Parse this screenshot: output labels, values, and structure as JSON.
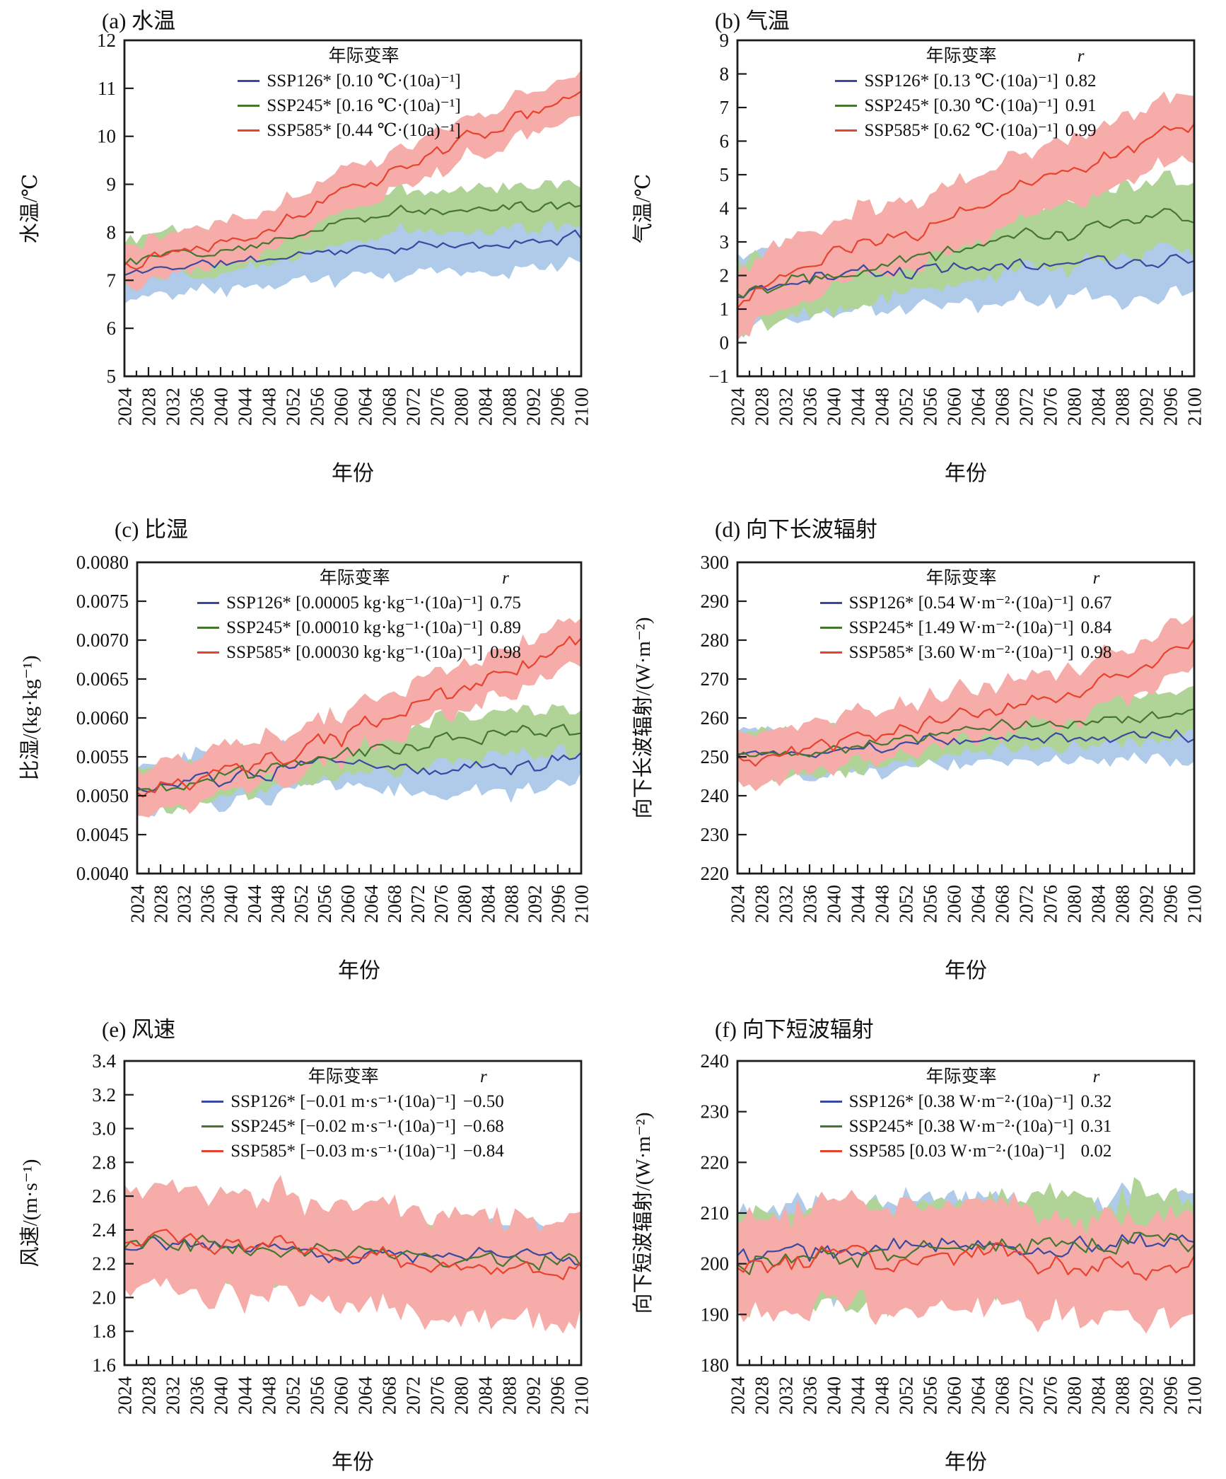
{
  "figure": {
    "background": "#ffffff",
    "x_axis": {
      "label": "年份",
      "start": 2024,
      "end": 2100,
      "label_step": 4,
      "minor_step": 2,
      "tick_labels": [
        "2024",
        "2028",
        "2032",
        "2036",
        "2040",
        "2044",
        "2048",
        "2052",
        "2056",
        "2060",
        "2064",
        "2068",
        "2072",
        "2076",
        "2080",
        "2084",
        "2088",
        "2092",
        "2096",
        "2100"
      ]
    },
    "colors": {
      "SSP126": {
        "line": "#3A49A0",
        "band": "#AFCBE9"
      },
      "SSP245": {
        "line": "#45762F",
        "band": "#B0D497"
      },
      "SSP585": {
        "line": "#E8422F",
        "band": "#F6ADA9"
      }
    },
    "axis_color": "#1c1c1c"
  },
  "chart_data": [
    {
      "id": "a",
      "type": "line-band",
      "title": "(a) 水温",
      "ylabel": "水温/℃",
      "xlabel": "年份",
      "ylim": [
        5,
        12
      ],
      "ytick": 1,
      "ydec": 0,
      "grid": false,
      "legend_position": "top-center",
      "legend": {
        "header": "年际变率",
        "r_header": "",
        "entries": [
          {
            "name": "SSP126*",
            "rate": "[0.10 ℃·(10a)⁻¹]",
            "r": "",
            "color": "#3A49A0"
          },
          {
            "name": "SSP245*",
            "rate": "[0.16 ℃·(10a)⁻¹]",
            "r": "",
            "color": "#45762F"
          },
          {
            "name": "SSP585*",
            "rate": "[0.44 ℃·(10a)⁻¹]",
            "r": "",
            "color": "#E8422F"
          }
        ]
      },
      "anchor_years": [
        2024,
        2032,
        2040,
        2048,
        2056,
        2064,
        2072,
        2080,
        2088,
        2096,
        2100
      ],
      "series": [
        {
          "scenario": "SSP126",
          "trend_per_decade": 0.1,
          "values": [
            7.1,
            7.3,
            7.35,
            7.45,
            7.6,
            7.65,
            7.7,
            7.7,
            7.75,
            7.85,
            7.9
          ],
          "noise": 0.13,
          "band": 0.55,
          "seed": 11
        },
        {
          "scenario": "SSP245",
          "trend_per_decade": 0.16,
          "values": [
            7.4,
            7.55,
            7.65,
            7.85,
            8.1,
            8.3,
            8.45,
            8.5,
            8.55,
            8.6,
            8.65
          ],
          "noise": 0.14,
          "band": 0.45,
          "seed": 12
        },
        {
          "scenario": "SSP585",
          "trend_per_decade": 0.44,
          "values": [
            7.4,
            7.6,
            7.85,
            8.1,
            8.55,
            9.0,
            9.45,
            9.9,
            10.3,
            10.65,
            10.9
          ],
          "noise": 0.16,
          "band": 0.42,
          "seed": 13
        }
      ]
    },
    {
      "id": "b",
      "type": "line-band",
      "title": "(b) 气温",
      "ylabel": "气温/℃",
      "xlabel": "年份",
      "ylim": [
        -1,
        9
      ],
      "ytick": 1,
      "ydec": 0,
      "grid": false,
      "legend_position": "top-center",
      "legend": {
        "header": "年际变率",
        "r_header": "r",
        "entries": [
          {
            "name": "SSP126*",
            "rate": "[0.13 ℃·(10a)⁻¹]",
            "r": "0.82",
            "color": "#3A49A0"
          },
          {
            "name": "SSP245*",
            "rate": "[0.30 ℃·(10a)⁻¹]",
            "r": "0.91",
            "color": "#45762F"
          },
          {
            "name": "SSP585*",
            "rate": "[0.62 ℃·(10a)⁻¹]",
            "r": "0.99",
            "color": "#E8422F"
          }
        ]
      },
      "anchor_years": [
        2024,
        2032,
        2040,
        2048,
        2056,
        2064,
        2072,
        2080,
        2088,
        2096,
        2100
      ],
      "series": [
        {
          "scenario": "SSP126",
          "trend_per_decade": 0.13,
          "values": [
            1.4,
            1.8,
            2.0,
            2.1,
            2.25,
            2.3,
            2.3,
            2.35,
            2.4,
            2.45,
            2.5
          ],
          "noise": 0.28,
          "band": 1.1,
          "seed": 21
        },
        {
          "scenario": "SSP245",
          "trend_per_decade": 0.3,
          "values": [
            1.5,
            1.9,
            2.2,
            2.4,
            2.65,
            3.0,
            3.2,
            3.3,
            3.5,
            3.8,
            3.6
          ],
          "noise": 0.32,
          "band": 1.0,
          "seed": 22
        },
        {
          "scenario": "SSP585",
          "trend_per_decade": 0.62,
          "values": [
            1.3,
            2.0,
            2.5,
            3.0,
            3.5,
            4.1,
            4.6,
            5.2,
            5.8,
            6.4,
            6.6
          ],
          "noise": 0.32,
          "band": 1.0,
          "seed": 23
        }
      ]
    },
    {
      "id": "c",
      "type": "line-band",
      "title": "(c) 比湿",
      "ylabel": "比湿/(kg·kg⁻¹)",
      "xlabel": "年份",
      "ylim": [
        0.004,
        0.008
      ],
      "ytick": 0.0005,
      "ydec": 4,
      "grid": false,
      "legend_position": "top-center",
      "legend": {
        "header": "年际变率",
        "r_header": "r",
        "entries": [
          {
            "name": "SSP126*",
            "rate": "[0.00005 kg·kg⁻¹·(10a)⁻¹]",
            "r": "0.75",
            "color": "#3A49A0"
          },
          {
            "name": "SSP245*",
            "rate": "[0.00010 kg·kg⁻¹·(10a)⁻¹]",
            "r": "0.89",
            "color": "#45762F"
          },
          {
            "name": "SSP585*",
            "rate": "[0.00030 kg·kg⁻¹·(10a)⁻¹]",
            "r": "0.98",
            "color": "#E8422F"
          }
        ]
      },
      "anchor_years": [
        2024,
        2032,
        2040,
        2048,
        2056,
        2064,
        2072,
        2080,
        2088,
        2096,
        2100
      ],
      "series": [
        {
          "scenario": "SSP126",
          "trend_per_decade": 5e-05,
          "values": [
            0.00505,
            0.00515,
            0.0052,
            0.0053,
            0.0054,
            0.0054,
            0.00535,
            0.00535,
            0.0054,
            0.00545,
            0.0055
          ],
          "noise": 0.00012,
          "band": 0.0003,
          "seed": 31
        },
        {
          "scenario": "SSP245",
          "trend_per_decade": 0.0001,
          "values": [
            0.00505,
            0.00515,
            0.00525,
            0.00535,
            0.0055,
            0.0056,
            0.0057,
            0.00575,
            0.0058,
            0.00585,
            0.0059
          ],
          "noise": 0.00012,
          "band": 0.00028,
          "seed": 32
        },
        {
          "scenario": "SSP585",
          "trend_per_decade": 0.0003,
          "values": [
            0.005,
            0.00515,
            0.0053,
            0.00545,
            0.00565,
            0.0059,
            0.00615,
            0.0064,
            0.0066,
            0.0069,
            0.00705
          ],
          "noise": 0.00014,
          "band": 0.0003,
          "seed": 33
        }
      ]
    },
    {
      "id": "d",
      "type": "line-band",
      "title": "(d) 向下长波辐射",
      "ylabel": "向下长波辐射/(W·m⁻²)",
      "xlabel": "年份",
      "ylim": [
        220,
        300
      ],
      "ytick": 10,
      "ydec": 0,
      "grid": false,
      "legend_position": "top-center",
      "legend": {
        "header": "年际变率",
        "r_header": "r",
        "entries": [
          {
            "name": "SSP126*",
            "rate": "[0.54 W·m⁻²·(10a)⁻¹]",
            "r": "0.67",
            "color": "#3A49A0"
          },
          {
            "name": "SSP245*",
            "rate": "[1.49 W·m⁻²·(10a)⁻¹]",
            "r": "0.84",
            "color": "#45762F"
          },
          {
            "name": "SSP585*",
            "rate": "[3.60 W·m⁻²·(10a)⁻¹]",
            "r": "0.98",
            "color": "#E8422F"
          }
        ]
      },
      "anchor_years": [
        2024,
        2032,
        2040,
        2048,
        2056,
        2064,
        2072,
        2080,
        2088,
        2096,
        2100
      ],
      "series": [
        {
          "scenario": "SSP126",
          "trend_per_decade": 0.54,
          "values": [
            250,
            251,
            252,
            253,
            254,
            254,
            255,
            254.5,
            255,
            255,
            256
          ],
          "noise": 1.9,
          "band": 6,
          "seed": 41
        },
        {
          "scenario": "SSP245",
          "trend_per_decade": 1.49,
          "values": [
            250,
            251,
            252.5,
            254,
            255.5,
            257,
            258,
            258.5,
            260,
            261,
            262
          ],
          "noise": 1.9,
          "band": 6,
          "seed": 42
        },
        {
          "scenario": "SSP585",
          "trend_per_decade": 3.6,
          "values": [
            249.5,
            251,
            253,
            255.5,
            258,
            261,
            264,
            267,
            271,
            275,
            279
          ],
          "noise": 2.3,
          "band": 6.5,
          "seed": 43
        }
      ]
    },
    {
      "id": "e",
      "type": "line-band",
      "title": "(e) 风速",
      "ylabel": "风速/(m·s⁻¹)",
      "xlabel": "年份",
      "ylim": [
        1.6,
        3.4
      ],
      "ytick": 0.2,
      "ydec": 1,
      "grid": false,
      "legend_position": "top-center",
      "legend": {
        "header": "年际变率",
        "r_header": "r",
        "entries": [
          {
            "name": "SSP126*",
            "rate": "[−0.01 m·s⁻¹·(10a)⁻¹]",
            "r": "−0.50",
            "color": "#3A49A0"
          },
          {
            "name": "SSP245*",
            "rate": "[−0.02 m·s⁻¹·(10a)⁻¹]",
            "r": "−0.68",
            "color": "#45762F"
          },
          {
            "name": "SSP585*",
            "rate": "[−0.03 m·s⁻¹·(10a)⁻¹]",
            "r": "−0.84",
            "color": "#E8422F"
          }
        ]
      },
      "anchor_years": [
        2024,
        2032,
        2040,
        2048,
        2056,
        2064,
        2072,
        2080,
        2088,
        2096,
        2100
      ],
      "series": [
        {
          "scenario": "SSP126",
          "trend_per_decade": -0.01,
          "values": [
            2.33,
            2.32,
            2.3,
            2.29,
            2.27,
            2.26,
            2.25,
            2.25,
            2.26,
            2.23,
            2.22
          ],
          "noise": 0.055,
          "band": 0.17,
          "seed": 51
        },
        {
          "scenario": "SSP245",
          "trend_per_decade": -0.02,
          "values": [
            2.34,
            2.32,
            2.31,
            2.3,
            2.28,
            2.26,
            2.25,
            2.24,
            2.23,
            2.22,
            2.2
          ],
          "noise": 0.065,
          "band": 0.18,
          "seed": 52
        },
        {
          "scenario": "SSP585",
          "trend_per_decade": -0.03,
          "values": [
            2.33,
            2.34,
            2.31,
            2.3,
            2.28,
            2.25,
            2.22,
            2.2,
            2.19,
            2.17,
            2.16
          ],
          "noise": 0.065,
          "band": 0.3,
          "seed": 53
        }
      ]
    },
    {
      "id": "f",
      "type": "line-band",
      "title": "(f) 向下短波辐射",
      "ylabel": "向下短波辐射/(W·m⁻²)",
      "xlabel": "年份",
      "ylim": [
        180,
        240
      ],
      "ytick": 10,
      "ydec": 0,
      "grid": false,
      "legend_position": "top-center",
      "legend": {
        "header": "年际变率",
        "r_header": "r",
        "entries": [
          {
            "name": "SSP126*",
            "rate": "[0.38 W·m⁻²·(10a)⁻¹]",
            "r": "0.32",
            "color": "#3A49A0"
          },
          {
            "name": "SSP245*",
            "rate": "[0.38 W·m⁻²·(10a)⁻¹]",
            "r": "0.31",
            "color": "#45762F"
          },
          {
            "name": "SSP585",
            "rate": "[0.03 W·m⁻²·(10a)⁻¹]",
            "r": "0.02",
            "color": "#E8422F"
          }
        ]
      },
      "anchor_years": [
        2024,
        2032,
        2040,
        2048,
        2056,
        2064,
        2072,
        2080,
        2088,
        2096,
        2100
      ],
      "series": [
        {
          "scenario": "SSP126",
          "trend_per_decade": 0.38,
          "values": [
            201,
            202,
            202,
            203,
            203,
            204,
            203,
            204,
            204,
            204,
            203
          ],
          "noise": 2.4,
          "band": 9,
          "seed": 61
        },
        {
          "scenario": "SSP245",
          "trend_per_decade": 0.38,
          "values": [
            200,
            201,
            202,
            202,
            203,
            203,
            203,
            204,
            204,
            205,
            204
          ],
          "noise": 2.7,
          "band": 9,
          "seed": 62
        },
        {
          "scenario": "SSP585",
          "trend_per_decade": 0.03,
          "values": [
            201,
            201,
            201,
            200,
            201,
            202,
            201,
            200,
            200,
            199,
            201
          ],
          "noise": 2.7,
          "band": 10,
          "seed": 63
        }
      ]
    }
  ]
}
